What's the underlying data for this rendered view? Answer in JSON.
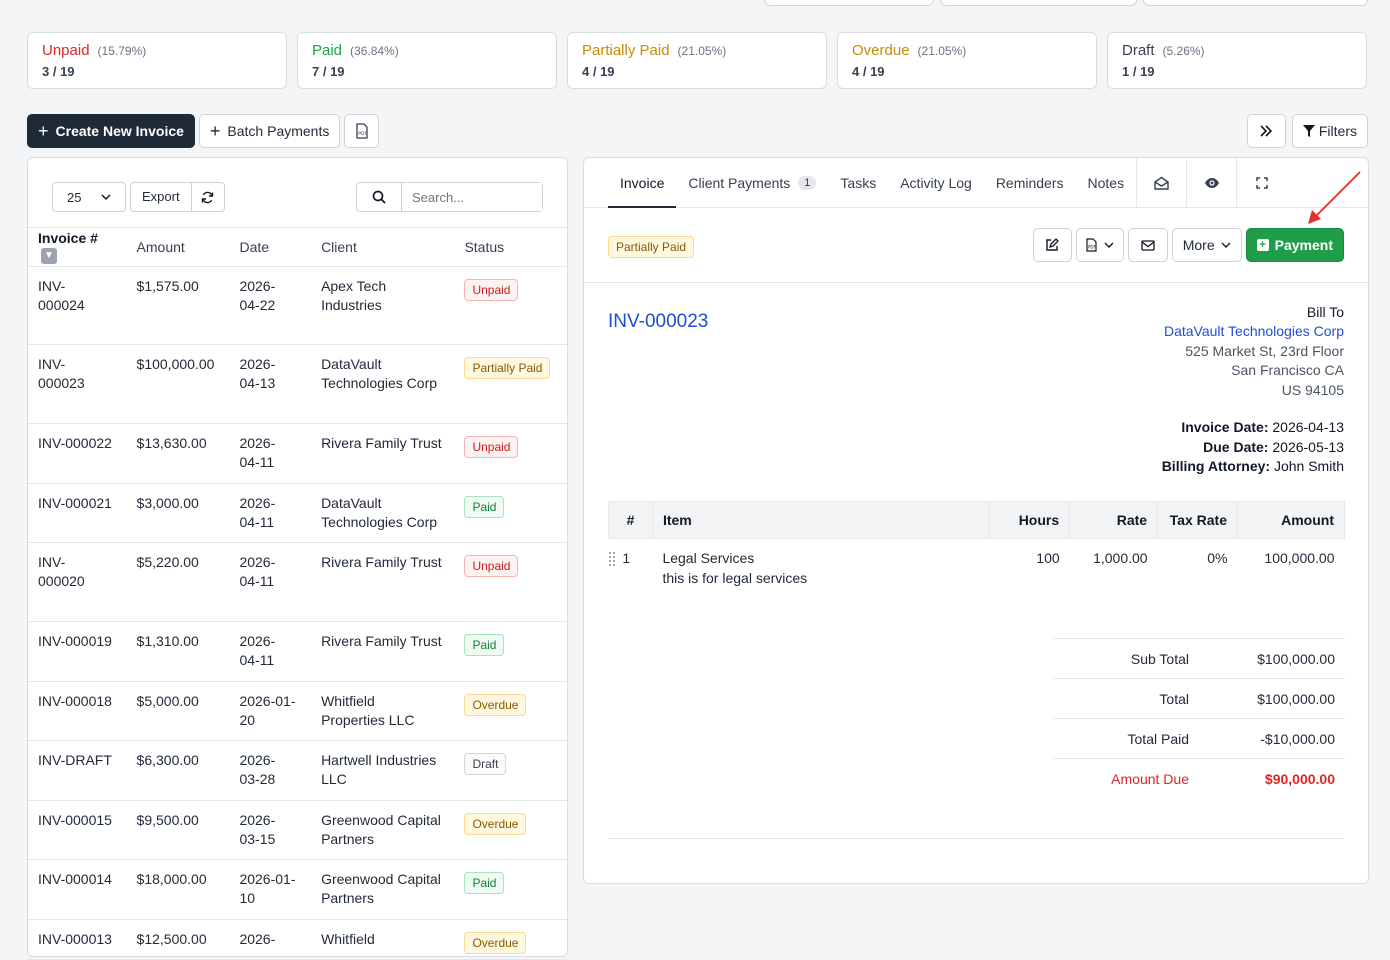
{
  "stats": [
    {
      "label": "Unpaid",
      "pct": "(15.79%)",
      "count": "3 / 19",
      "color": "#dc2626"
    },
    {
      "label": "Paid",
      "pct": "(36.84%)",
      "count": "7 / 19",
      "color": "#16a34a"
    },
    {
      "label": "Partially Paid",
      "pct": "(21.05%)",
      "count": "4 / 19",
      "color": "#ca8a04"
    },
    {
      "label": "Overdue",
      "pct": "(21.05%)",
      "count": "4 / 19",
      "color": "#ca8a04"
    },
    {
      "label": "Draft",
      "pct": "(5.26%)",
      "count": "1 / 19",
      "color": "#374151"
    }
  ],
  "toolbar": {
    "create_label": "Create New Invoice",
    "batch_label": "Batch Payments",
    "filters_label": "Filters"
  },
  "list": {
    "page_size": "25",
    "export_label": "Export",
    "search_placeholder": "Search...",
    "columns": [
      "Invoice #",
      "Amount",
      "Date",
      "Client",
      "Status"
    ],
    "rows": [
      {
        "invoice": "INV-\n000024",
        "amount": "$1,575.00",
        "date": "2026-\n04-22",
        "client": "Apex Tech\nIndustries",
        "status": "Unpaid",
        "cls": "b-unpaid",
        "h": 78
      },
      {
        "invoice": "INV-\n000023",
        "amount": "$100,000.00",
        "date": "2026-\n04-13",
        "client": "DataVault\nTechnologies Corp",
        "status": "Partially Paid",
        "cls": "b-partial",
        "h": 79
      },
      {
        "invoice": "INV-000022",
        "amount": "$13,630.00",
        "date": "2026-\n04-11",
        "client": "Rivera Family Trust",
        "status": "Unpaid",
        "cls": "b-unpaid",
        "h": 60
      },
      {
        "invoice": "INV-000021",
        "amount": "$3,000.00",
        "date": "2026-\n04-11",
        "client": "DataVault\nTechnologies Corp",
        "status": "Paid",
        "cls": "b-paid",
        "h": 59
      },
      {
        "invoice": "INV-\n000020",
        "amount": "$5,220.00",
        "date": "2026-\n04-11",
        "client": "Rivera Family Trust",
        "status": "Unpaid",
        "cls": "b-unpaid",
        "h": 79
      },
      {
        "invoice": "INV-000019",
        "amount": "$1,310.00",
        "date": "2026-\n04-11",
        "client": "Rivera Family Trust",
        "status": "Paid",
        "cls": "b-paid",
        "h": 60
      },
      {
        "invoice": "INV-000018",
        "amount": "$5,000.00",
        "date": "2026-01-\n20",
        "client": "Whitfield\nProperties LLC",
        "status": "Overdue",
        "cls": "b-overdue",
        "h": 59
      },
      {
        "invoice": "INV-DRAFT",
        "amount": "$6,300.00",
        "date": "2026-\n03-28",
        "client": "Hartwell Industries\nLLC",
        "status": "Draft",
        "cls": "b-draft",
        "h": 60
      },
      {
        "invoice": "INV-000015",
        "amount": "$9,500.00",
        "date": "2026-\n03-15",
        "client": "Greenwood Capital\nPartners",
        "status": "Overdue",
        "cls": "b-overdue",
        "h": 59
      },
      {
        "invoice": "INV-000014",
        "amount": "$18,000.00",
        "date": "2026-01-\n10",
        "client": "Greenwood Capital\nPartners",
        "status": "Paid",
        "cls": "b-paid",
        "h": 60
      },
      {
        "invoice": "INV-000013",
        "amount": "$12,500.00",
        "date": "2026-",
        "client": "Whitfield",
        "status": "Overdue",
        "cls": "b-overdue",
        "h": 40
      }
    ]
  },
  "detail": {
    "tabs": [
      {
        "label": "Invoice",
        "active": true
      },
      {
        "label": "Client Payments",
        "count": "1"
      },
      {
        "label": "Tasks"
      },
      {
        "label": "Activity Log"
      },
      {
        "label": "Reminders"
      },
      {
        "label": "Notes"
      }
    ],
    "status": "Partially Paid",
    "more_label": "More",
    "payment_label": "Payment",
    "invoice_number": "INV-000023",
    "bill_to": {
      "heading": "Bill To",
      "client": "DataVault Technologies Corp",
      "line1": "525 Market St, 23rd Floor",
      "line2": "San Francisco CA",
      "line3": "US 94105"
    },
    "meta": {
      "invoice_date_label": "Invoice Date:",
      "invoice_date": "2026-04-13",
      "due_date_label": "Due Date:",
      "due_date": "2026-05-13",
      "attorney_label": "Billing Attorney:",
      "attorney": "John Smith"
    },
    "items_columns": [
      "#",
      "Item",
      "Hours",
      "Rate",
      "Tax Rate",
      "Amount"
    ],
    "items": [
      {
        "num": "1",
        "name": "Legal Services",
        "desc": "this is for legal services",
        "hours": "100",
        "rate": "1,000.00",
        "tax": "0%",
        "amount": "100,000.00"
      }
    ],
    "totals": {
      "subtotal_label": "Sub Total",
      "subtotal": "$100,000.00",
      "total_label": "Total",
      "total": "$100,000.00",
      "paid_label": "Total Paid",
      "paid": "-$10,000.00",
      "due_label": "Amount Due",
      "due": "$90,000.00"
    }
  }
}
